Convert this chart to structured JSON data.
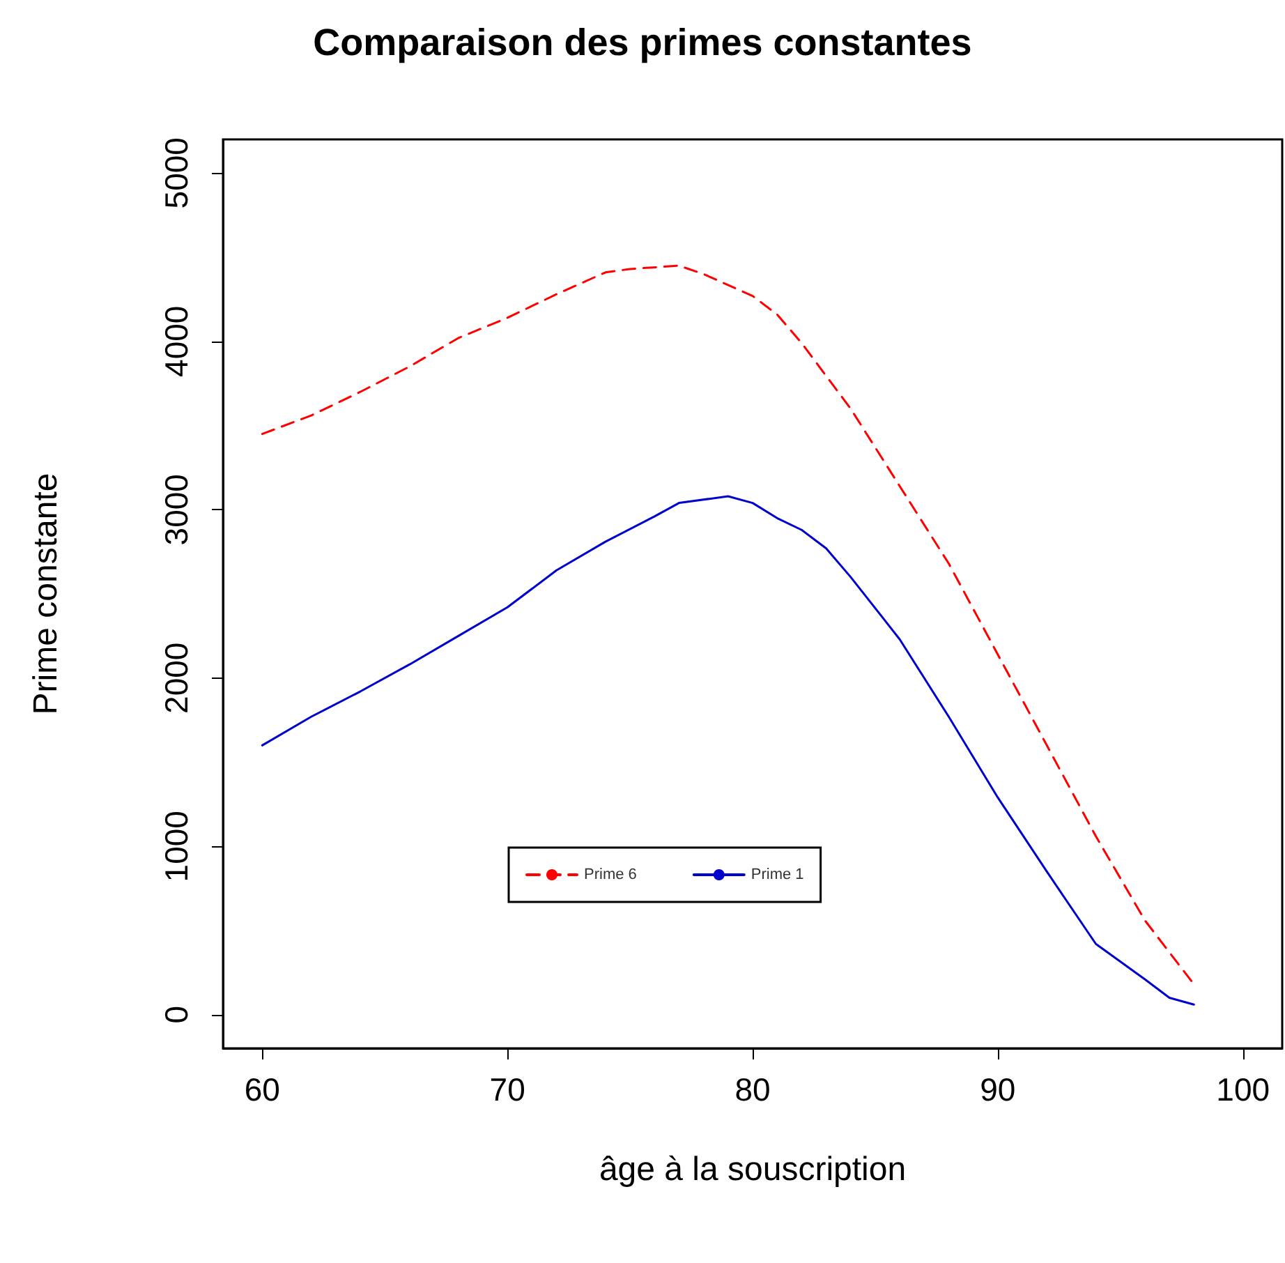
{
  "chart_data": {
    "type": "line",
    "title": "Comparaison des primes constantes",
    "xlabel": "âge à la souscription",
    "ylabel": "Prime constante",
    "xlim": [
      58.4,
      101.6
    ],
    "xticks": [
      60,
      70,
      80,
      90,
      100
    ],
    "ylim": [
      -200,
      5200
    ],
    "yticks": [
      0,
      1000,
      2000,
      3000,
      4000,
      5000
    ],
    "grid": false,
    "legend": "bottom",
    "marker": "none",
    "series": [
      {
        "name": "Prime 6",
        "color": "#ff0000",
        "line_style": "dashed",
        "x": [
          60,
          62,
          64,
          66,
          68,
          70,
          72,
          74,
          75,
          77,
          78,
          80,
          81,
          82,
          84,
          86,
          88,
          90,
          92,
          94,
          96,
          98
        ],
        "values": [
          3450,
          3560,
          3700,
          3850,
          4020,
          4140,
          4280,
          4410,
          4430,
          4450,
          4400,
          4270,
          4160,
          3990,
          3600,
          3140,
          2680,
          2140,
          1600,
          1060,
          560,
          180
        ]
      },
      {
        "name": "Prime 1",
        "color": "#0000cd",
        "line_style": "solid",
        "x": [
          60,
          62,
          64,
          66,
          68,
          70,
          72,
          74,
          76,
          77,
          79,
          80,
          81,
          82,
          83,
          84,
          86,
          88,
          90,
          92,
          94,
          96,
          97,
          98
        ],
        "values": [
          1600,
          1770,
          1920,
          2080,
          2250,
          2420,
          2640,
          2810,
          2960,
          3040,
          3080,
          3040,
          2950,
          2880,
          2770,
          2600,
          2230,
          1770,
          1290,
          850,
          420,
          210,
          100,
          60
        ]
      }
    ]
  }
}
